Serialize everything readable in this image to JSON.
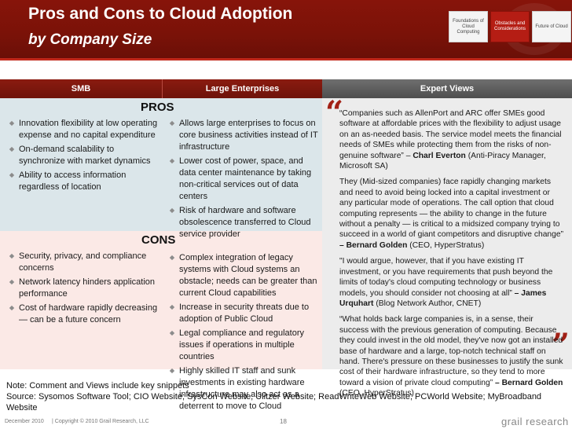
{
  "header": {
    "title": "Pros and Cons to Cloud Adoption",
    "subtitle": "by Company Size",
    "nav": [
      {
        "label": "Foundations of Cloud Computing",
        "active": false
      },
      {
        "label": "Obstacles and Considerations",
        "active": true
      },
      {
        "label": "Future of Cloud",
        "active": false
      }
    ]
  },
  "columns": {
    "smb": "SMB",
    "large": "Large Enterprises",
    "expert": "Expert Views"
  },
  "pros": {
    "label": "PROS",
    "smb": [
      "Innovation flexibility at low operating expense and no capital expenditure",
      "On-demand scalability to synchronize with market dynamics",
      "Ability to access information regardless of location"
    ],
    "large": [
      "Allows large enterprises to focus on core business activities instead of IT infrastructure",
      "Lower cost of power, space, and data center maintenance by taking non-critical services out of data centers",
      "Risk of hardware and software obsolescence transferred to Cloud service provider"
    ]
  },
  "cons": {
    "label": "CONS",
    "smb": [
      "Security, privacy, and compliance concerns",
      "Network latency hinders application performance",
      "Cost of hardware rapidly decreasing — can be a future concern"
    ],
    "large": [
      "Complex integration of  legacy systems with Cloud systems an obstacle; needs can be greater than current Cloud capabilities",
      "Increase in security threats due to adoption of Public Cloud",
      "Legal compliance and regulatory issues if operations in multiple countries",
      "Highly skilled IT staff and sunk investments in existing hardware infrastructure may also act as a deterrent to move to Cloud"
    ]
  },
  "quotes": [
    {
      "text": "“Companies such as AllenPort and ARC offer SMEs good software at affordable prices with the flexibility to adjust usage on an as-needed basis. The service model meets the financial needs of SMEs while protecting them from the risks of non-genuine software” – ",
      "author": "Charl Everton",
      "source": " (Anti-Piracy Manager, Microsoft SA)"
    },
    {
      "text": "They (Mid-sized companies) face rapidly changing markets and need to avoid being locked into a capital investment or any particular mode of operations. The call option that cloud computing represents — the ability to change in the future without a penalty — is critical to a midsized company trying to succeed in a world of giant competitors and disruptive change” ",
      "author": "– Bernard Golden",
      "source": " (CEO, HyperStratus)"
    },
    {
      "text": "\"I would argue, however, that if you have existing IT investment, or you have requirements that push beyond the limits of today's cloud computing technology or business models, you should consider not choosing at all” ",
      "author": "– James Urquhart",
      "source": " (Blog Network Author, CNET)"
    },
    {
      "text": "“What holds back large companies is, in a sense, their success with the previous generation of computing. Because they could invest in the old model, they've now got an installed base of hardware and a large, top-notch technical staff on hand. There's pressure on these businesses to justify the sunk cost of their hardware infrastructure, so they tend to more toward a vision of private cloud computing” ",
      "author": "– Bernard Golden",
      "source": " (CEO, HyperStratus)"
    }
  ],
  "notes": {
    "note": "Note: Comment and Views include key snippets",
    "source": "Source: Sysomos Software Tool; CIO Website; SysCon Website; Ulitzer Website; ReadWriteWeb Website; PCWorld Website; MyBroadband Website"
  },
  "footer": {
    "date": "December 2010",
    "copyright": "| Copyright © 2010 Grail Research, LLC",
    "page": "18",
    "brand": "grail research"
  },
  "colors": {
    "header_red": "#7a1208",
    "accent_red": "#c0281b",
    "pros_band": "#dbe6ea",
    "cons_band": "#fbe9e6",
    "expert_band": "#ececec"
  }
}
